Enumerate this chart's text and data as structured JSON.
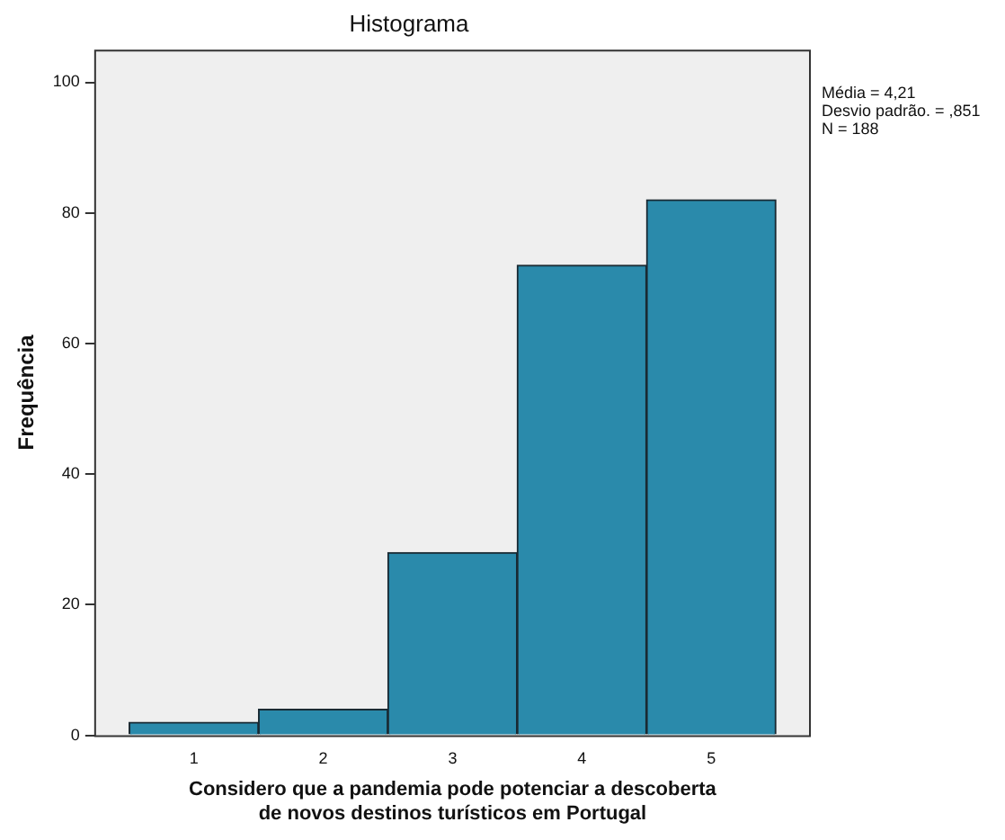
{
  "chart_data": {
    "type": "histogram",
    "title": "Histograma",
    "xlabel": "Considero que a pandemia pode potenciar a descoberta de novos destinos turísticos em Portugal",
    "ylabel": "Frequência",
    "bins": [
      0.5,
      1.5,
      2.5,
      3.5,
      4.5,
      5.5
    ],
    "values": [
      2,
      4,
      28,
      72,
      82
    ],
    "color": "#2a8aab",
    "xlim": [
      0.23,
      5.77
    ],
    "xticks": [
      1,
      2,
      3,
      4,
      5
    ],
    "ylim": [
      0,
      105
    ],
    "yticks": [
      0,
      20,
      40,
      60,
      80,
      100
    ],
    "grid": false,
    "legend": false,
    "annotations": [
      "Média = 4,21",
      "Desvio padrão. = ,851",
      "N = 188"
    ]
  }
}
